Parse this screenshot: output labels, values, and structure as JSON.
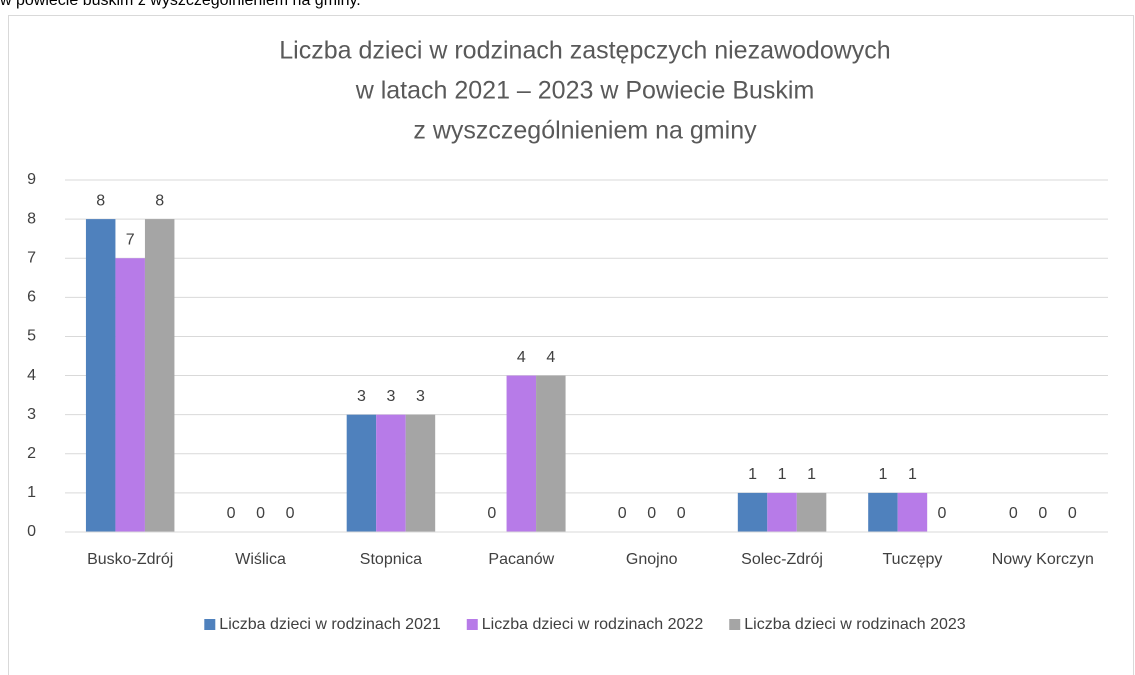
{
  "caption": "w powiecie buskim z wyszczególnieniem na gminy.",
  "chart_data": {
    "type": "bar",
    "title": [
      "Liczba dzieci w rodzinach zastępczych niezawodowych",
      "w latach 2021 – 2023 w Powiecie Buskim",
      "z wyszczególnieniem na gminy"
    ],
    "categories": [
      "Busko-Zdrój",
      "Wiślica",
      "Stopnica",
      "Pacanów",
      "Gnojno",
      "Solec-Zdrój",
      "Tuczępy",
      "Nowy Korczyn"
    ],
    "series": [
      {
        "name": "Liczba dzieci w rodzinach 2021",
        "color": "#4f81bd",
        "values": [
          8,
          0,
          3,
          0,
          0,
          1,
          1,
          0
        ]
      },
      {
        "name": "Liczba dzieci w rodzinach 2022",
        "color": "#b77be8",
        "values": [
          7,
          0,
          3,
          4,
          0,
          1,
          1,
          0
        ]
      },
      {
        "name": "Liczba dzieci w rodzinach 2023",
        "color": "#a5a5a5",
        "values": [
          8,
          0,
          3,
          4,
          0,
          1,
          0,
          0
        ]
      }
    ],
    "ylim": [
      0,
      9
    ],
    "yticks": [
      0,
      1,
      2,
      3,
      4,
      5,
      6,
      7,
      8,
      9
    ],
    "grid": true,
    "legend": "bottom"
  }
}
